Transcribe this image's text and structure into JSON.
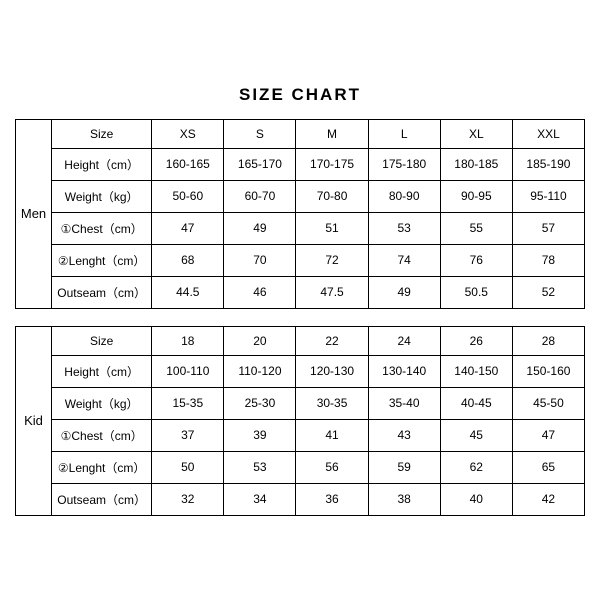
{
  "title": "SIZE CHART",
  "colors": {
    "background": "#ffffff",
    "border": "#000000",
    "text": "#000000"
  },
  "tables": [
    {
      "category": "Men",
      "rows": [
        {
          "label": "Size",
          "values": [
            "XS",
            "S",
            "M",
            "L",
            "XL",
            "XXL"
          ]
        },
        {
          "label": "Height（cm）",
          "values": [
            "160-165",
            "165-170",
            "170-175",
            "175-180",
            "180-185",
            "185-190"
          ]
        },
        {
          "label": "Weight（kg）",
          "values": [
            "50-60",
            "60-70",
            "70-80",
            "80-90",
            "90-95",
            "95-110"
          ]
        },
        {
          "label": "①Chest（cm）",
          "values": [
            "47",
            "49",
            "51",
            "53",
            "55",
            "57"
          ]
        },
        {
          "label": "②Lenght（cm）",
          "values": [
            "68",
            "70",
            "72",
            "74",
            "76",
            "78"
          ]
        },
        {
          "label": "Outseam（cm）",
          "values": [
            "44.5",
            "46",
            "47.5",
            "49",
            "50.5",
            "52"
          ]
        }
      ]
    },
    {
      "category": "Kid",
      "rows": [
        {
          "label": "Size",
          "values": [
            "18",
            "20",
            "22",
            "24",
            "26",
            "28"
          ]
        },
        {
          "label": "Height（cm）",
          "values": [
            "100-110",
            "110-120",
            "120-130",
            "130-140",
            "140-150",
            "150-160"
          ]
        },
        {
          "label": "Weight（kg）",
          "values": [
            "15-35",
            "25-30",
            "30-35",
            "35-40",
            "40-45",
            "45-50"
          ]
        },
        {
          "label": "①Chest（cm）",
          "values": [
            "37",
            "39",
            "41",
            "43",
            "45",
            "47"
          ]
        },
        {
          "label": "②Lenght（cm）",
          "values": [
            "50",
            "53",
            "56",
            "59",
            "62",
            "65"
          ]
        },
        {
          "label": "Outseam（cm）",
          "values": [
            "32",
            "34",
            "36",
            "38",
            "40",
            "42"
          ]
        }
      ]
    }
  ]
}
